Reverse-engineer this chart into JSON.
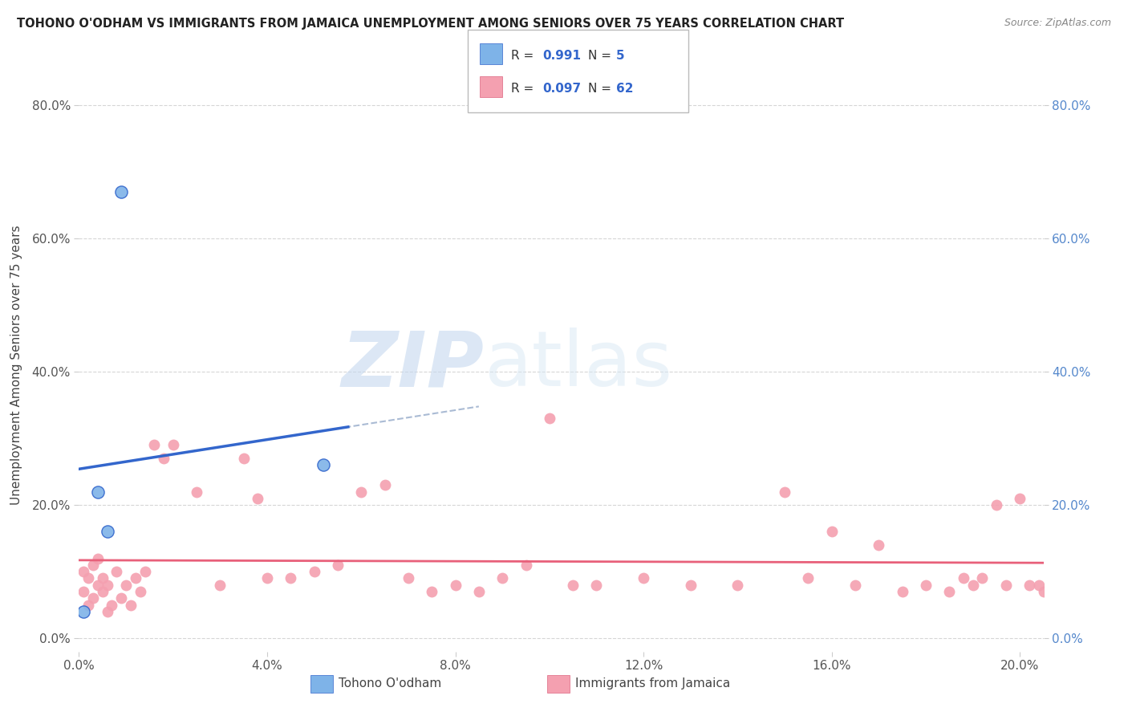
{
  "title": "TOHONO O'ODHAM VS IMMIGRANTS FROM JAMAICA UNEMPLOYMENT AMONG SENIORS OVER 75 YEARS CORRELATION CHART",
  "source": "Source: ZipAtlas.com",
  "ylabel": "Unemployment Among Seniors over 75 years",
  "xlabel": "",
  "legend_label1": "Tohono O'odham",
  "legend_label2": "Immigrants from Jamaica",
  "watermark_zip": "ZIP",
  "watermark_atlas": "atlas",
  "blue_color": "#7EB3E8",
  "pink_color": "#F4A0B0",
  "blue_line_color": "#3366CC",
  "pink_line_color": "#E8607A",
  "dashed_line_color": "#AABBD4",
  "right_tick_color": "#5588CC",
  "xlim": [
    0.0,
    0.205
  ],
  "ylim": [
    -0.02,
    0.84
  ],
  "xticks": [
    0.0,
    0.04,
    0.08,
    0.12,
    0.16,
    0.2
  ],
  "yticks": [
    0.0,
    0.2,
    0.4,
    0.6,
    0.8
  ],
  "blue_x": [
    0.001,
    0.004,
    0.006,
    0.009,
    0.052
  ],
  "blue_y": [
    0.04,
    0.22,
    0.16,
    0.67,
    0.26
  ],
  "pink_x": [
    0.001,
    0.001,
    0.002,
    0.002,
    0.003,
    0.003,
    0.004,
    0.004,
    0.005,
    0.005,
    0.006,
    0.006,
    0.007,
    0.008,
    0.009,
    0.01,
    0.011,
    0.012,
    0.013,
    0.014,
    0.016,
    0.018,
    0.02,
    0.025,
    0.03,
    0.035,
    0.038,
    0.04,
    0.045,
    0.05,
    0.055,
    0.06,
    0.065,
    0.07,
    0.075,
    0.08,
    0.085,
    0.09,
    0.095,
    0.1,
    0.105,
    0.11,
    0.12,
    0.13,
    0.14,
    0.15,
    0.155,
    0.16,
    0.165,
    0.17,
    0.175,
    0.18,
    0.185,
    0.188,
    0.19,
    0.192,
    0.195,
    0.197,
    0.2,
    0.202,
    0.204,
    0.205
  ],
  "pink_y": [
    0.07,
    0.1,
    0.05,
    0.09,
    0.06,
    0.11,
    0.08,
    0.12,
    0.07,
    0.09,
    0.04,
    0.08,
    0.05,
    0.1,
    0.06,
    0.08,
    0.05,
    0.09,
    0.07,
    0.1,
    0.29,
    0.27,
    0.29,
    0.22,
    0.08,
    0.27,
    0.21,
    0.09,
    0.09,
    0.1,
    0.11,
    0.22,
    0.23,
    0.09,
    0.07,
    0.08,
    0.07,
    0.09,
    0.11,
    0.33,
    0.08,
    0.08,
    0.09,
    0.08,
    0.08,
    0.22,
    0.09,
    0.16,
    0.08,
    0.14,
    0.07,
    0.08,
    0.07,
    0.09,
    0.08,
    0.09,
    0.2,
    0.08,
    0.21,
    0.08,
    0.08,
    0.07
  ],
  "background_color": "#FFFFFF",
  "grid_color": "#CCCCCC",
  "r_n_color": "#3366CC"
}
